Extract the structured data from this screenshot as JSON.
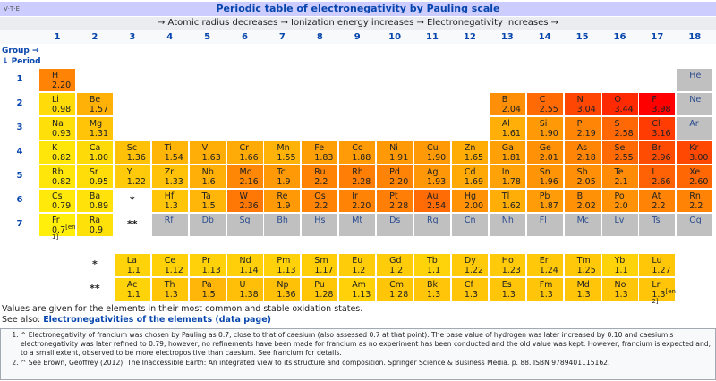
{
  "header": {
    "vte": "V·T·E",
    "title": "Periodic table of electronegativity by Pauling scale",
    "subtitle": "→ Atomic radius decreases → Ionization energy increases → Electronegativity increases →"
  },
  "group_label": "Group →",
  "period_label": "↓ Period",
  "groups": [
    "1",
    "2",
    "3",
    "4",
    "5",
    "6",
    "7",
    "8",
    "9",
    "10",
    "11",
    "12",
    "13",
    "14",
    "15",
    "16",
    "17",
    "18"
  ],
  "periods": [
    {
      "label": "1",
      "cells": [
        {
          "symbol": "H",
          "value": "2.20"
        },
        null,
        null,
        null,
        null,
        null,
        null,
        null,
        null,
        null,
        null,
        null,
        null,
        null,
        null,
        null,
        null,
        {
          "symbol": "He"
        }
      ]
    },
    {
      "label": "2",
      "cells": [
        {
          "symbol": "Li",
          "value": "0.98"
        },
        {
          "symbol": "Be",
          "value": "1.57"
        },
        null,
        null,
        null,
        null,
        null,
        null,
        null,
        null,
        null,
        null,
        {
          "symbol": "B",
          "value": "2.04"
        },
        {
          "symbol": "C",
          "value": "2.55"
        },
        {
          "symbol": "N",
          "value": "3.04"
        },
        {
          "symbol": "O",
          "value": "3.44"
        },
        {
          "symbol": "F",
          "value": "3.98"
        },
        {
          "symbol": "Ne"
        }
      ]
    },
    {
      "label": "3",
      "cells": [
        {
          "symbol": "Na",
          "value": "0.93"
        },
        {
          "symbol": "Mg",
          "value": "1.31"
        },
        null,
        null,
        null,
        null,
        null,
        null,
        null,
        null,
        null,
        null,
        {
          "symbol": "Al",
          "value": "1.61"
        },
        {
          "symbol": "Si",
          "value": "1.90"
        },
        {
          "symbol": "P",
          "value": "2.19"
        },
        {
          "symbol": "S",
          "value": "2.58"
        },
        {
          "symbol": "Cl",
          "value": "3.16"
        },
        {
          "symbol": "Ar"
        }
      ]
    },
    {
      "label": "4",
      "cells": [
        {
          "symbol": "K",
          "value": "0.82"
        },
        {
          "symbol": "Ca",
          "value": "1.00"
        },
        {
          "symbol": "Sc",
          "value": "1.36"
        },
        {
          "symbol": "Ti",
          "value": "1.54"
        },
        {
          "symbol": "V",
          "value": "1.63"
        },
        {
          "symbol": "Cr",
          "value": "1.66"
        },
        {
          "symbol": "Mn",
          "value": "1.55"
        },
        {
          "symbol": "Fe",
          "value": "1.83"
        },
        {
          "symbol": "Co",
          "value": "1.88"
        },
        {
          "symbol": "Ni",
          "value": "1.91"
        },
        {
          "symbol": "Cu",
          "value": "1.90"
        },
        {
          "symbol": "Zn",
          "value": "1.65"
        },
        {
          "symbol": "Ga",
          "value": "1.81"
        },
        {
          "symbol": "Ge",
          "value": "2.01"
        },
        {
          "symbol": "As",
          "value": "2.18"
        },
        {
          "symbol": "Se",
          "value": "2.55"
        },
        {
          "symbol": "Br",
          "value": "2.96"
        },
        {
          "symbol": "Kr",
          "value": "3.00"
        }
      ]
    },
    {
      "label": "5",
      "cells": [
        {
          "symbol": "Rb",
          "value": "0.82"
        },
        {
          "symbol": "Sr",
          "value": "0.95"
        },
        {
          "symbol": "Y",
          "value": "1.22"
        },
        {
          "symbol": "Zr",
          "value": "1.33"
        },
        {
          "symbol": "Nb",
          "value": "1.6"
        },
        {
          "symbol": "Mo",
          "value": "2.16"
        },
        {
          "symbol": "Tc",
          "value": "1.9"
        },
        {
          "symbol": "Ru",
          "value": "2.2"
        },
        {
          "symbol": "Rh",
          "value": "2.28"
        },
        {
          "symbol": "Pd",
          "value": "2.20"
        },
        {
          "symbol": "Ag",
          "value": "1.93"
        },
        {
          "symbol": "Cd",
          "value": "1.69"
        },
        {
          "symbol": "In",
          "value": "1.78"
        },
        {
          "symbol": "Sn",
          "value": "1.96"
        },
        {
          "symbol": "Sb",
          "value": "2.05"
        },
        {
          "symbol": "Te",
          "value": "2.1"
        },
        {
          "symbol": "I",
          "value": "2.66"
        },
        {
          "symbol": "Xe",
          "value": "2.60"
        }
      ]
    },
    {
      "label": "6",
      "cells": [
        {
          "symbol": "Cs",
          "value": "0.79"
        },
        {
          "symbol": "Ba",
          "value": "0.89"
        },
        {
          "marker": "*"
        },
        {
          "symbol": "Hf",
          "value": "1.3"
        },
        {
          "symbol": "Ta",
          "value": "1.5"
        },
        {
          "symbol": "W",
          "value": "2.36"
        },
        {
          "symbol": "Re",
          "value": "1.9"
        },
        {
          "symbol": "Os",
          "value": "2.2"
        },
        {
          "symbol": "Ir",
          "value": "2.20"
        },
        {
          "symbol": "Pt",
          "value": "2.28"
        },
        {
          "symbol": "Au",
          "value": "2.54"
        },
        {
          "symbol": "Hg",
          "value": "2.00"
        },
        {
          "symbol": "Tl",
          "value": "1.62"
        },
        {
          "symbol": "Pb",
          "value": "1.87"
        },
        {
          "symbol": "Bi",
          "value": "2.02"
        },
        {
          "symbol": "Po",
          "value": "2.0"
        },
        {
          "symbol": "At",
          "value": "2.2"
        },
        {
          "symbol": "Rn",
          "value": "2.2"
        }
      ]
    },
    {
      "label": "7",
      "cells": [
        {
          "symbol": "Fr",
          "value": "0.7",
          "note": "[en 1]"
        },
        {
          "symbol": "Ra",
          "value": "0.9"
        },
        {
          "marker": "**"
        },
        {
          "symbol": "Rf"
        },
        {
          "symbol": "Db"
        },
        {
          "symbol": "Sg"
        },
        {
          "symbol": "Bh"
        },
        {
          "symbol": "Hs"
        },
        {
          "symbol": "Mt"
        },
        {
          "symbol": "Ds"
        },
        {
          "symbol": "Rg"
        },
        {
          "symbol": "Cn"
        },
        {
          "symbol": "Nh"
        },
        {
          "symbol": "Fl"
        },
        {
          "symbol": "Mc"
        },
        {
          "symbol": "Lv"
        },
        {
          "symbol": "Ts"
        },
        {
          "symbol": "Og"
        }
      ]
    }
  ],
  "f_block": [
    {
      "marker": "*",
      "cells": [
        {
          "symbol": "La",
          "value": "1.1"
        },
        {
          "symbol": "Ce",
          "value": "1.12"
        },
        {
          "symbol": "Pr",
          "value": "1.13"
        },
        {
          "symbol": "Nd",
          "value": "1.14"
        },
        {
          "symbol": "Pm",
          "value": "1.13"
        },
        {
          "symbol": "Sm",
          "value": "1.17"
        },
        {
          "symbol": "Eu",
          "value": "1.2"
        },
        {
          "symbol": "Gd",
          "value": "1.2"
        },
        {
          "symbol": "Tb",
          "value": "1.1"
        },
        {
          "symbol": "Dy",
          "value": "1.22"
        },
        {
          "symbol": "Ho",
          "value": "1.23"
        },
        {
          "symbol": "Er",
          "value": "1.24"
        },
        {
          "symbol": "Tm",
          "value": "1.25"
        },
        {
          "symbol": "Yb",
          "value": "1.1"
        },
        {
          "symbol": "Lu",
          "value": "1.27"
        }
      ]
    },
    {
      "marker": "**",
      "cells": [
        {
          "symbol": "Ac",
          "value": "1.1"
        },
        {
          "symbol": "Th",
          "value": "1.3"
        },
        {
          "symbol": "Pa",
          "value": "1.5"
        },
        {
          "symbol": "U",
          "value": "1.38"
        },
        {
          "symbol": "Np",
          "value": "1.36"
        },
        {
          "symbol": "Pu",
          "value": "1.28"
        },
        {
          "symbol": "Am",
          "value": "1.13"
        },
        {
          "symbol": "Cm",
          "value": "1.28"
        },
        {
          "symbol": "Bk",
          "value": "1.3"
        },
        {
          "symbol": "Cf",
          "value": "1.3"
        },
        {
          "symbol": "Es",
          "value": "1.3"
        },
        {
          "symbol": "Fm",
          "value": "1.3"
        },
        {
          "symbol": "Md",
          "value": "1.3"
        },
        {
          "symbol": "No",
          "value": "1.3"
        },
        {
          "symbol": "Lr",
          "value": "1.3",
          "note": "[en 2]"
        }
      ]
    }
  ],
  "notes_intro": "Values are given for the elements in their most common and stable oxidation states.",
  "see_also": {
    "prefix": "See also: ",
    "link": "Electronegativities of the elements (data page)"
  },
  "references": [
    "^ Electronegativity of francium was chosen by Pauling as 0.7, close to that of caesium (also assessed 0.7 at that point). The base value of hydrogen was later increased by 0.10 and caesium's electronegativity was later refined to 0.79; however, no refinements have been made for francium as no experiment has been conducted and the old value was kept. However, francium is expected and, to a small extent, observed to be more electropositive than caesium. See francium for details.",
    "^ See Brown, Geoffrey (2012). The Inaccessible Earth: An integrated view to its structure and composition. Springer Science & Business Media. p. 88. ISBN 9789401115162."
  ]
}
